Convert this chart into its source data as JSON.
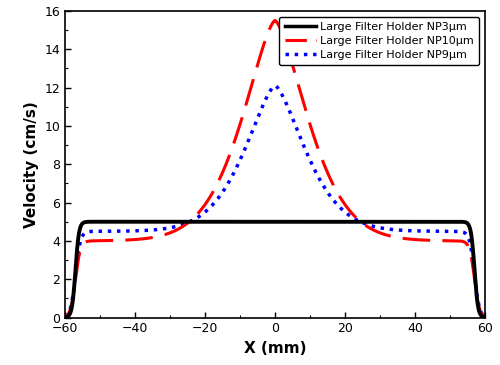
{
  "title": "",
  "xlabel": "X (mm)",
  "ylabel": "Velocity (cm/s)",
  "xlim": [
    -60,
    60
  ],
  "ylim": [
    0,
    16
  ],
  "yticks": [
    0,
    2,
    4,
    6,
    8,
    10,
    12,
    14,
    16
  ],
  "xticks": [
    -60,
    -40,
    -20,
    0,
    20,
    40,
    60
  ],
  "legend_labels": [
    "Large Filter Holder NP3μm",
    "Large Filter Holder NP10μm",
    "Large Filter Holder NP9μm"
  ],
  "line_colors": [
    "#000000",
    "#ff0000",
    "#0000ff"
  ],
  "np3_flat": 5.0,
  "np3_edge": 57.0,
  "np3_edge_sigma": 0.5,
  "np10_peak": 15.5,
  "np10_base": 4.0,
  "np10_sigma": 13.5,
  "np10_shape": 1.5,
  "np9_peak": 12.1,
  "np9_base": 4.5,
  "np9_sigma": 12.5,
  "np9_shape": 1.5,
  "edge_drop": 57.0,
  "edge_sigma": 0.7,
  "background_color": "#ffffff",
  "figsize": [
    5.0,
    3.65
  ],
  "dpi": 100
}
